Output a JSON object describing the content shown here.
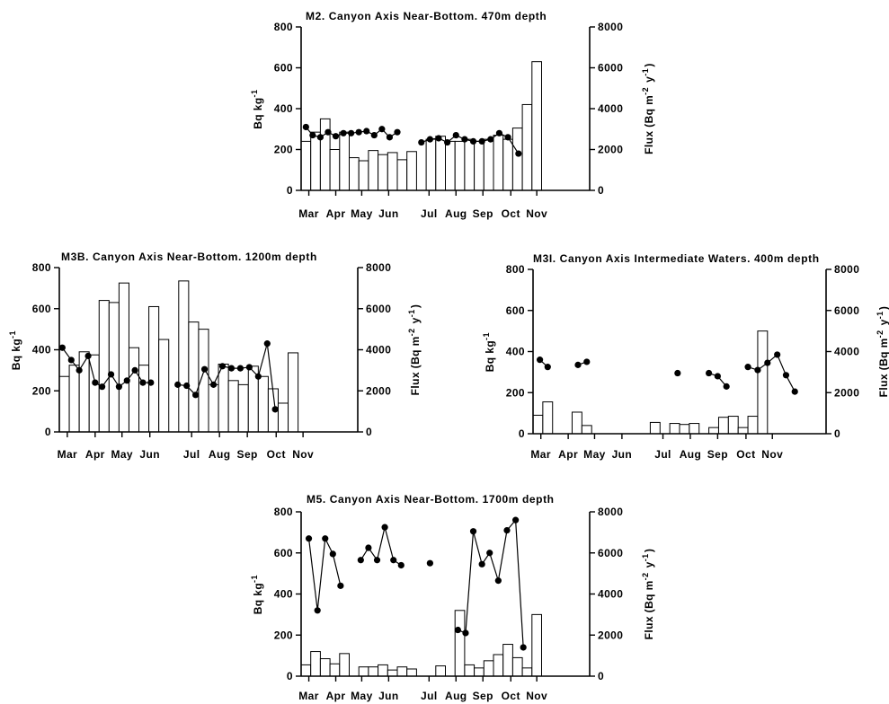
{
  "chart_data": [
    {
      "id": "m2",
      "type": "bar+line",
      "title": "M2. Canyon Axis Near-Bottom. 470m depth",
      "ylabel_left": "Bq kg-1",
      "ylabel_right": "Flux (Bq m-2 y-1)",
      "ylim_left": [
        0,
        800
      ],
      "ylim_right": [
        0,
        8000
      ],
      "yticks_left": [
        "0",
        "200",
        "400",
        "600",
        "800"
      ],
      "yticks_right": [
        "0",
        "2000",
        "4000",
        "6000",
        "8000"
      ],
      "x_range": [
        0,
        30
      ],
      "months": [
        "Mar",
        "Apr",
        "May",
        "Jun",
        "Jul",
        "Aug",
        "Sep",
        "Oct",
        "Nov"
      ],
      "month_pos": [
        0.8,
        3.6,
        6.3,
        9.1,
        13.3,
        16.1,
        18.9,
        21.8,
        24.5
      ],
      "bars": [
        2400,
        2850,
        3500,
        2000,
        2850,
        1600,
        1450,
        1950,
        1750,
        1850,
        1500,
        1900,
        null,
        2500,
        2650,
        2400,
        2400,
        2500,
        2400,
        2500,
        2700,
        2500,
        3050,
        4200,
        6300
      ],
      "points": [
        [
          0.5,
          310
        ],
        [
          1.2,
          270
        ],
        [
          2.0,
          260
        ],
        [
          2.8,
          285
        ],
        [
          3.6,
          265
        ],
        [
          4.4,
          280
        ],
        [
          5.2,
          280
        ],
        [
          6.0,
          285
        ],
        [
          6.8,
          290
        ],
        [
          7.6,
          270
        ],
        [
          8.4,
          300
        ],
        [
          9.2,
          260
        ],
        [
          10.0,
          285
        ],
        null,
        [
          12.5,
          235
        ],
        [
          13.4,
          250
        ],
        [
          14.3,
          255
        ],
        [
          15.2,
          235
        ],
        [
          16.1,
          270
        ],
        [
          17.0,
          250
        ],
        [
          17.9,
          240
        ],
        [
          18.8,
          240
        ],
        [
          19.7,
          250
        ],
        [
          20.6,
          280
        ],
        [
          21.5,
          260
        ],
        [
          22.6,
          180
        ]
      ]
    },
    {
      "id": "m3b",
      "type": "bar+line",
      "title": "M3B. Canyon Axis Near-Bottom. 1200m depth",
      "ylabel_left": "Bq kg-1",
      "ylabel_right": "Flux (Bq m-2 y-1)",
      "ylim_left": [
        0,
        800
      ],
      "ylim_right": [
        0,
        8000
      ],
      "yticks_left": [
        "0",
        "200",
        "400",
        "600",
        "800"
      ],
      "yticks_right": [
        "0",
        "2000",
        "4000",
        "6000",
        "8000"
      ],
      "x_range": [
        0,
        30
      ],
      "months": [
        "Mar",
        "Apr",
        "May",
        "Jun",
        "Jul",
        "Aug",
        "Sep",
        "Oct",
        "Nov"
      ],
      "month_pos": [
        0.8,
        3.6,
        6.3,
        9.1,
        13.3,
        16.1,
        18.9,
        21.8,
        24.5
      ],
      "bars": [
        2700,
        3250,
        3900,
        3750,
        6400,
        6300,
        7250,
        4100,
        3250,
        6100,
        4500,
        null,
        7350,
        5350,
        5000,
        2300,
        3300,
        2500,
        2300,
        3200,
        2700,
        2100,
        1400,
        3850
      ],
      "points": [
        [
          0.3,
          410
        ],
        [
          1.2,
          350
        ],
        [
          2.0,
          300
        ],
        [
          2.9,
          370
        ],
        [
          3.6,
          240
        ],
        [
          4.3,
          220
        ],
        [
          5.2,
          280
        ],
        [
          6.0,
          220
        ],
        [
          6.8,
          250
        ],
        [
          7.6,
          300
        ],
        [
          8.4,
          240
        ],
        [
          9.2,
          240
        ],
        null,
        [
          11.9,
          230
        ],
        [
          12.8,
          225
        ],
        [
          13.7,
          180
        ],
        [
          14.6,
          305
        ],
        [
          15.5,
          230
        ],
        [
          16.4,
          320
        ],
        [
          17.3,
          310
        ],
        [
          18.2,
          310
        ],
        [
          19.1,
          315
        ],
        [
          20.0,
          270
        ],
        [
          20.9,
          430
        ],
        [
          21.7,
          110
        ]
      ]
    },
    {
      "id": "m3i",
      "type": "bar+line",
      "title": "M3I. Canyon Axis Intermediate Waters. 400m depth",
      "ylabel_left": "Bq kg-1",
      "ylabel_right": "Flux (Bq m-2 y-1)",
      "ylim_left": [
        0,
        800
      ],
      "ylim_right": [
        0,
        8000
      ],
      "yticks_left": [
        "0",
        "200",
        "400",
        "600",
        "800"
      ],
      "yticks_right": [
        "0",
        "2000",
        "4000",
        "6000",
        "8000"
      ],
      "x_range": [
        0,
        30
      ],
      "months": [
        "Mar",
        "Apr",
        "May",
        "Jun",
        "Jul",
        "Aug",
        "Sep",
        "Oct",
        "Nov"
      ],
      "month_pos": [
        0.8,
        3.6,
        6.3,
        9.1,
        13.3,
        16.1,
        18.9,
        21.8,
        24.5
      ],
      "bars": [
        900,
        1550,
        null,
        null,
        1050,
        400,
        null,
        null,
        null,
        null,
        null,
        null,
        550,
        null,
        500,
        450,
        500,
        null,
        300,
        800,
        850,
        300,
        850,
        5000
      ],
      "points": [
        [
          0.7,
          360
        ],
        [
          1.5,
          325
        ],
        null,
        [
          4.6,
          335
        ],
        [
          5.5,
          350
        ],
        null,
        [
          14.8,
          295
        ],
        null,
        [
          18.0,
          295
        ],
        [
          18.9,
          280
        ],
        [
          19.8,
          230
        ],
        null,
        [
          22.0,
          325
        ],
        [
          23.0,
          310
        ],
        [
          24.0,
          345
        ],
        [
          25.0,
          385
        ],
        [
          25.9,
          285
        ],
        [
          26.8,
          205
        ]
      ]
    },
    {
      "id": "m5",
      "type": "bar+line",
      "title": "M5. Canyon Axis Near-Bottom. 1700m depth",
      "ylabel_left": "Bq kg-1",
      "ylabel_right": "Flux (Bq m-2 y-1)",
      "ylim_left": [
        0,
        800
      ],
      "ylim_right": [
        0,
        8000
      ],
      "yticks_left": [
        "0",
        "200",
        "400",
        "600",
        "800"
      ],
      "yticks_right": [
        "0",
        "2000",
        "4000",
        "6000",
        "8000"
      ],
      "x_range": [
        0,
        30
      ],
      "months": [
        "Mar",
        "Apr",
        "May",
        "Jun",
        "Jul",
        "Aug",
        "Sep",
        "Oct",
        "Nov"
      ],
      "month_pos": [
        0.8,
        3.6,
        6.3,
        9.1,
        13.3,
        16.1,
        18.9,
        21.8,
        24.5
      ],
      "bars": [
        550,
        1200,
        850,
        600,
        1100,
        null,
        450,
        450,
        550,
        300,
        450,
        350,
        null,
        null,
        500,
        null,
        3200,
        550,
        400,
        750,
        1050,
        1550,
        900,
        400,
        3000
      ],
      "points": [
        [
          0.8,
          670
        ],
        [
          1.7,
          320
        ],
        [
          2.5,
          670
        ],
        [
          3.3,
          595
        ],
        [
          4.1,
          440
        ],
        null,
        [
          6.2,
          565
        ],
        [
          7.0,
          625
        ],
        [
          7.9,
          565
        ],
        [
          8.7,
          725
        ],
        [
          9.6,
          565
        ],
        [
          10.4,
          540
        ],
        null,
        [
          13.4,
          550
        ],
        null,
        [
          16.3,
          225
        ],
        [
          17.1,
          210
        ],
        [
          17.9,
          705
        ],
        [
          18.8,
          545
        ],
        [
          19.6,
          600
        ],
        [
          20.5,
          465
        ],
        [
          21.4,
          710
        ],
        [
          22.3,
          760
        ],
        [
          23.1,
          140
        ]
      ]
    }
  ]
}
